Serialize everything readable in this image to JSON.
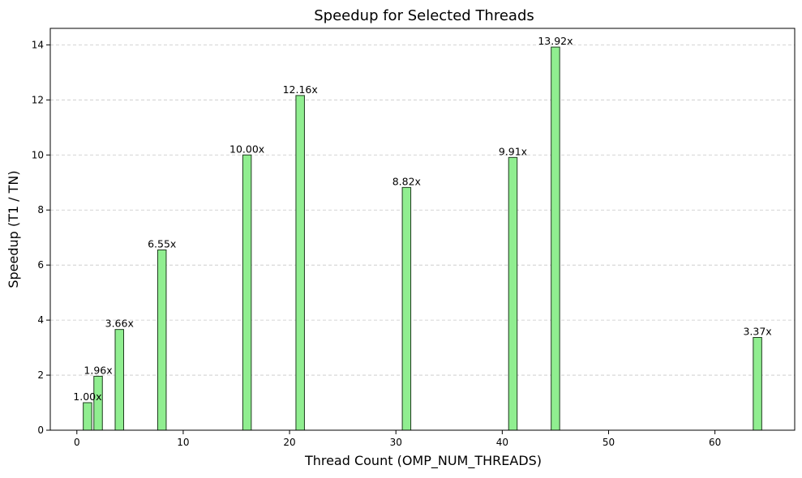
{
  "chart_data": {
    "type": "bar",
    "title": "Speedup for Selected Threads",
    "xlabel": "Thread Count (OMP_NUM_THREADS)",
    "ylabel": "Speedup (T1 / TN)",
    "x": [
      1,
      2,
      4,
      8,
      16,
      21,
      31,
      41,
      45,
      64
    ],
    "values": [
      1.0,
      1.96,
      3.66,
      6.55,
      10.0,
      12.16,
      8.82,
      9.91,
      13.92,
      3.37
    ],
    "data_labels": [
      "1.00x",
      "1.96x",
      "3.66x",
      "6.55x",
      "10.00x",
      "12.16x",
      "8.82x",
      "9.91x",
      "13.92x",
      "3.37x"
    ],
    "xlim": [
      -2.5,
      67.5
    ],
    "ylim": [
      0,
      14.6
    ],
    "xticks": [
      0,
      10,
      20,
      30,
      40,
      50,
      60
    ],
    "yticks": [
      0,
      2,
      4,
      6,
      8,
      10,
      12,
      14
    ],
    "grid": "y-dashed",
    "bar_color": "#90ee90",
    "bar_edge_color": "#1f3b1f"
  }
}
